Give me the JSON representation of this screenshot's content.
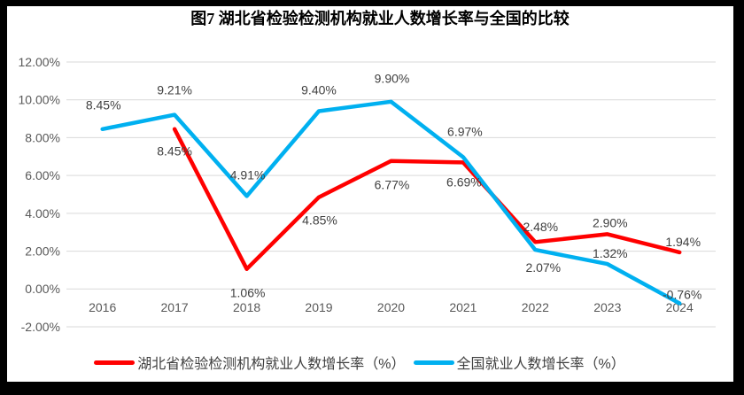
{
  "chart_data": {
    "type": "line",
    "title": "图7 湖北省检验检测机构就业人数增长率与全国的比较",
    "xlabel": "",
    "ylabel": "",
    "categories": [
      "2016",
      "2017",
      "2018",
      "2019",
      "2020",
      "2021",
      "2022",
      "2023",
      "2024"
    ],
    "ylim": [
      -2,
      12
    ],
    "grid": true,
    "legend_position": "bottom",
    "y_axis": {
      "ticks": [
        {
          "v": 12,
          "label": "12.00%"
        },
        {
          "v": 10,
          "label": "10.00%"
        },
        {
          "v": 8,
          "label": "8.00%"
        },
        {
          "v": 6,
          "label": "6.00%"
        },
        {
          "v": 4,
          "label": "4.00%"
        },
        {
          "v": 2,
          "label": "2.00%"
        },
        {
          "v": 0,
          "label": "0.00%"
        },
        {
          "v": -2,
          "label": "-2.00%"
        }
      ]
    },
    "colors": {
      "hubei_red": "#FF0000",
      "national_blue": "#00B0F0",
      "gridline": "#D9D9D9",
      "axis_text": "#595959",
      "data_label": "#404040"
    },
    "series": [
      {
        "id": "hubei",
        "name": "湖北省检验检测机构就业人数增长率（%）",
        "color": "#FF0000",
        "values": [
          null,
          8.45,
          1.06,
          4.85,
          6.77,
          6.69,
          2.48,
          2.9,
          1.94
        ],
        "labels": [
          null,
          "8.45%",
          "1.06%",
          "4.85%",
          "6.77%",
          "6.69%",
          "2.48%",
          "2.90%",
          "1.94%"
        ],
        "label_offsets": [
          null,
          [
            0,
            25
          ],
          [
            1,
            27
          ],
          [
            1,
            26
          ],
          [
            1,
            27
          ],
          [
            1,
            22
          ],
          [
            6,
            -17
          ],
          [
            3,
            -13
          ],
          [
            4,
            -12
          ]
        ]
      },
      {
        "id": "national",
        "name": "全国就业人数增长率（%）",
        "color": "#00B0F0",
        "values": [
          8.45,
          9.21,
          4.91,
          9.4,
          9.9,
          6.97,
          2.07,
          1.32,
          -0.76
        ],
        "labels": [
          "8.45%",
          "9.21%",
          "4.91%",
          "9.40%",
          "9.90%",
          "6.97%",
          "2.07%",
          "1.32%",
          "-0.76%"
        ],
        "label_offsets": [
          [
            1,
            -27
          ],
          [
            0,
            -28
          ],
          [
            1,
            -24
          ],
          [
            0,
            -24
          ],
          [
            1,
            -26
          ],
          [
            2,
            -29
          ],
          [
            9,
            20
          ],
          [
            3,
            -12
          ],
          [
            3,
            -10
          ]
        ]
      }
    ]
  }
}
